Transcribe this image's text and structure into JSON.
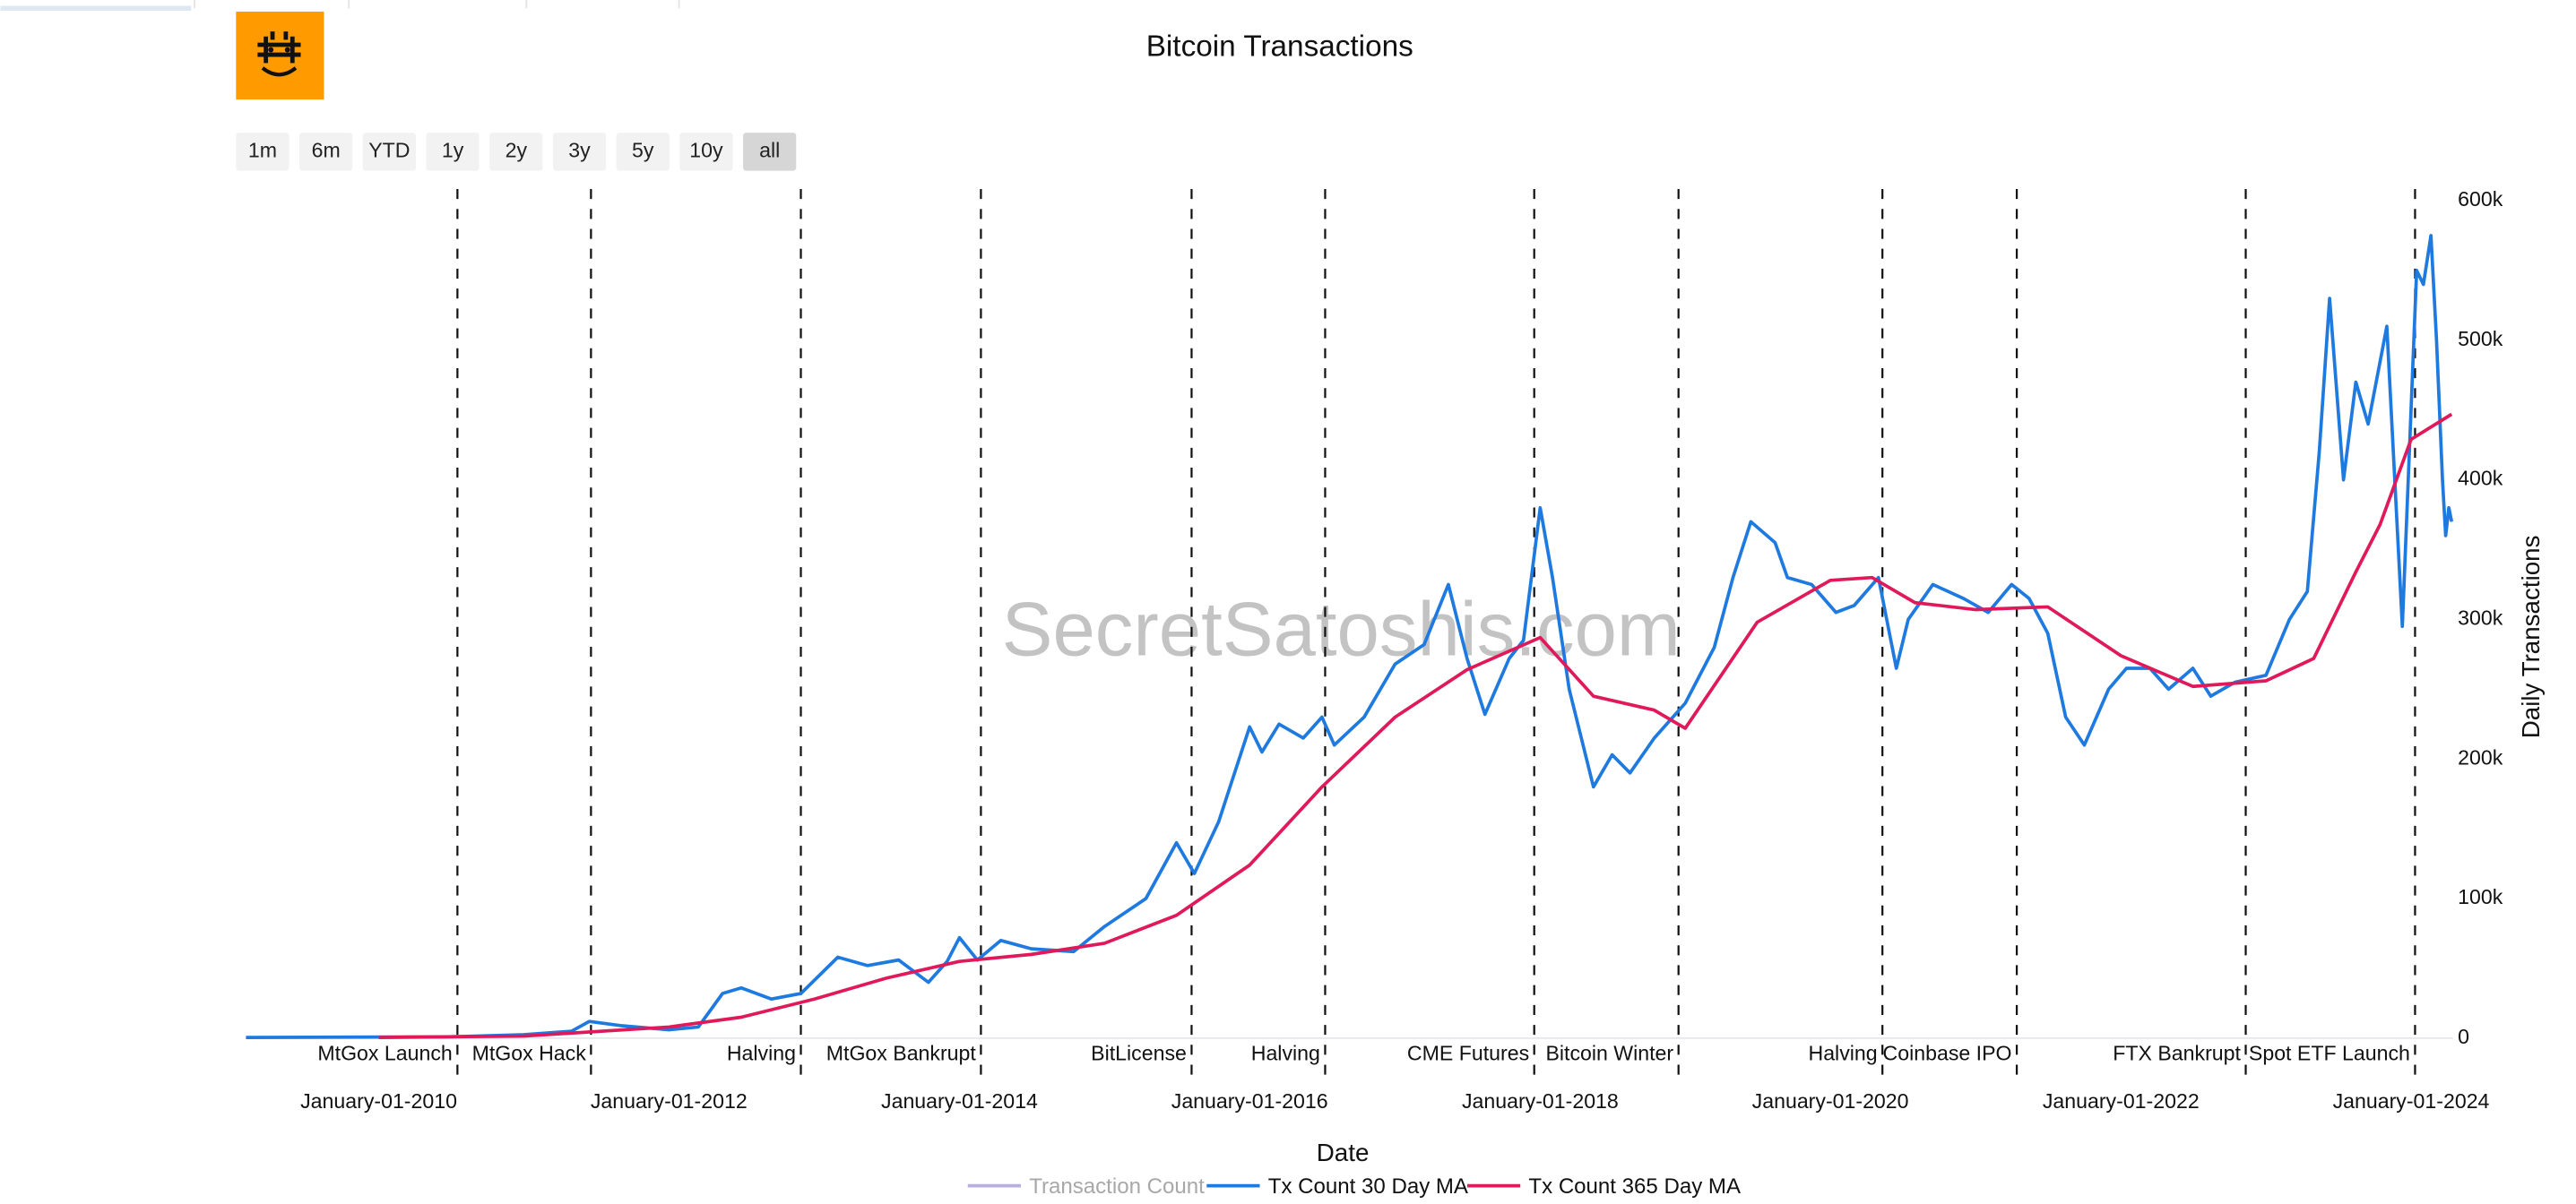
{
  "range_buttons": [
    "1m",
    "6m",
    "YTD",
    "1y",
    "2y",
    "3y",
    "5y",
    "10y",
    "all"
  ],
  "selected_range": "all",
  "chart_data": {
    "type": "line",
    "title": "Bitcoin Transactions",
    "watermark": "SecretSatoshis.com",
    "x_label": "Date",
    "y_label": "Daily Transactions",
    "xlim": [
      "2009-02-01",
      "2024-04-15"
    ],
    "xticks": [
      {
        "value": "2010-01-01",
        "label": "January-01-2010"
      },
      {
        "value": "2012-01-01",
        "label": "January-01-2012"
      },
      {
        "value": "2014-01-01",
        "label": "January-01-2014"
      },
      {
        "value": "2016-01-01",
        "label": "January-01-2016"
      },
      {
        "value": "2018-01-01",
        "label": "January-01-2018"
      },
      {
        "value": "2020-01-01",
        "label": "January-01-2020"
      },
      {
        "value": "2022-01-01",
        "label": "January-01-2022"
      },
      {
        "value": "2024-01-01",
        "label": "January-01-2024"
      }
    ],
    "ylim": [
      0,
      600000
    ],
    "yticks": [
      0,
      {
        "value": 100000,
        "label": "100k"
      },
      {
        "value": 200000,
        "label": "200k"
      },
      {
        "value": 300000,
        "label": "300k"
      },
      {
        "value": 400000,
        "label": "400k"
      },
      {
        "value": 500000,
        "label": "500k"
      },
      {
        "value": 600000,
        "label": "600k"
      }
    ],
    "y_axis_side": "right",
    "legend": "bottom",
    "events": [
      {
        "label": "MtGox Launch",
        "x": "2010-07-18"
      },
      {
        "label": "MtGox Hack",
        "x": "2011-06-19"
      },
      {
        "label": "Halving",
        "x": "2012-11-28"
      },
      {
        "label": "MtGox Bankrupt",
        "x": "2014-02-24"
      },
      {
        "label": "BitLicense",
        "x": "2015-08-08"
      },
      {
        "label": "Halving",
        "x": "2016-07-09"
      },
      {
        "label": "CME Futures",
        "x": "2017-12-17"
      },
      {
        "label": "Bitcoin Winter",
        "x": "2018-12-15"
      },
      {
        "label": "Halving",
        "x": "2020-05-11"
      },
      {
        "label": "Coinbase IPO",
        "x": "2021-04-14"
      },
      {
        "label": "FTX Bankrupt",
        "x": "2022-11-11"
      },
      {
        "label": "Spot ETF Launch",
        "x": "2024-01-11"
      }
    ],
    "series": [
      {
        "name": "Transaction Count",
        "color": "#b9aee0",
        "visible": false,
        "x": [],
        "values": []
      },
      {
        "name": "Tx Count 30 Day MA",
        "color": "#1f7ae0",
        "visible": true,
        "x": [
          "2009-02-01",
          "2010-01-01",
          "2010-07-01",
          "2011-01-01",
          "2011-05-01",
          "2011-06-15",
          "2011-09-01",
          "2012-01-01",
          "2012-03-15",
          "2012-05-15",
          "2012-07-01",
          "2012-09-15",
          "2012-11-28",
          "2013-03-01",
          "2013-05-15",
          "2013-08-01",
          "2013-10-15",
          "2013-12-01",
          "2014-01-01",
          "2014-02-15",
          "2014-04-15",
          "2014-07-01",
          "2014-10-15",
          "2015-01-01",
          "2015-04-15",
          "2015-07-01",
          "2015-08-15",
          "2015-10-15",
          "2016-01-01",
          "2016-02-01",
          "2016-03-15",
          "2016-05-15",
          "2016-07-01",
          "2016-08-01",
          "2016-10-15",
          "2017-01-01",
          "2017-03-15",
          "2017-05-15",
          "2017-07-01",
          "2017-08-15",
          "2017-10-15",
          "2017-11-20",
          "2018-01-01",
          "2018-02-01",
          "2018-03-15",
          "2018-05-15",
          "2018-07-01",
          "2018-08-15",
          "2018-10-15",
          "2019-01-01",
          "2019-03-15",
          "2019-05-01",
          "2019-06-15",
          "2019-08-15",
          "2019-09-15",
          "2019-11-15",
          "2020-01-15",
          "2020-03-01",
          "2020-05-01",
          "2020-06-15",
          "2020-07-15",
          "2020-09-15",
          "2020-12-01",
          "2021-02-01",
          "2021-04-01",
          "2021-05-15",
          "2021-07-01",
          "2021-08-15",
          "2021-10-01",
          "2021-12-01",
          "2022-01-15",
          "2022-03-15",
          "2022-05-01",
          "2022-07-01",
          "2022-08-15",
          "2022-10-15",
          "2023-01-01",
          "2023-03-01",
          "2023-04-15",
          "2023-05-15",
          "2023-06-10",
          "2023-07-15",
          "2023-08-15",
          "2023-09-15",
          "2023-11-01",
          "2023-12-10",
          "2024-01-15",
          "2024-02-01",
          "2024-02-20",
          "2024-03-05",
          "2024-03-20",
          "2024-03-28",
          "2024-04-05",
          "2024-04-12"
        ],
        "values": [
          500,
          800,
          1000,
          2500,
          5000,
          12000,
          9000,
          6000,
          8000,
          32000,
          36000,
          28000,
          32000,
          58000,
          52000,
          56000,
          40000,
          55000,
          72000,
          56000,
          70000,
          64000,
          62000,
          80000,
          100000,
          140000,
          118000,
          155000,
          223000,
          205000,
          225000,
          215000,
          230000,
          210000,
          230000,
          268000,
          282000,
          325000,
          272000,
          232000,
          272000,
          285000,
          380000,
          330000,
          250000,
          180000,
          203000,
          190000,
          215000,
          240000,
          280000,
          330000,
          370000,
          355000,
          330000,
          325000,
          305000,
          310000,
          330000,
          265000,
          300000,
          325000,
          315000,
          305000,
          325000,
          315000,
          290000,
          230000,
          210000,
          250000,
          265000,
          265000,
          250000,
          265000,
          245000,
          255000,
          260000,
          300000,
          320000,
          420000,
          530000,
          400000,
          470000,
          440000,
          510000,
          295000,
          550000,
          540000,
          575000,
          500000,
          400000,
          360000,
          380000,
          370000
        ]
      },
      {
        "name": "Tx Count 365 Day MA",
        "color": "#e0195a",
        "visible": true,
        "x": [
          "2010-01-01",
          "2011-01-01",
          "2012-01-01",
          "2012-07-01",
          "2013-01-01",
          "2013-07-01",
          "2014-01-01",
          "2014-07-01",
          "2015-01-01",
          "2015-07-01",
          "2016-01-01",
          "2016-07-01",
          "2017-01-01",
          "2017-07-01",
          "2018-01-01",
          "2018-05-15",
          "2018-10-15",
          "2019-01-01",
          "2019-07-01",
          "2020-01-01",
          "2020-04-15",
          "2020-08-01",
          "2021-01-01",
          "2021-07-01",
          "2022-01-01",
          "2022-07-01",
          "2023-01-01",
          "2023-05-01",
          "2023-08-15",
          "2023-10-15",
          "2024-01-01",
          "2024-04-12"
        ],
        "values": [
          500,
          1500,
          8000,
          15000,
          28000,
          43000,
          55000,
          60000,
          68000,
          88000,
          124000,
          180000,
          230000,
          264000,
          287000,
          245000,
          235000,
          222000,
          298000,
          328000,
          330000,
          312000,
          307000,
          309000,
          274000,
          252000,
          256000,
          272000,
          334000,
          368000,
          429000,
          447000
        ]
      }
    ]
  }
}
